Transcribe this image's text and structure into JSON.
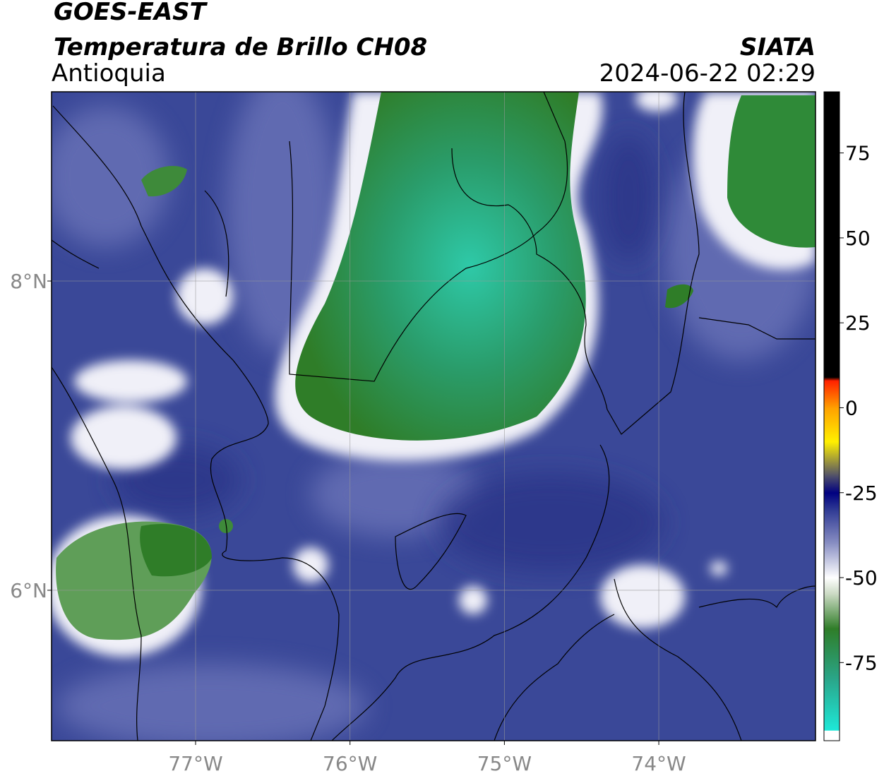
{
  "header": {
    "satellite": "GOES-EAST",
    "product": "Temperatura de Brillo CH08",
    "region": "Antioquia",
    "source": "SIATA",
    "datetime": "2024-06-22 02:29"
  },
  "map": {
    "xlim": [
      -77.933,
      -72.985
    ],
    "ylim": [
      5.027,
      9.224
    ],
    "xticks": [
      {
        "value": -77,
        "label": "77°W"
      },
      {
        "value": -76,
        "label": "76°W"
      },
      {
        "value": -75,
        "label": "75°W"
      },
      {
        "value": -74,
        "label": "74°W"
      }
    ],
    "yticks": [
      {
        "value": 8,
        "label": "8°N"
      },
      {
        "value": 6,
        "label": "6°N"
      }
    ],
    "grid": true
  },
  "colorbar": {
    "lim": [
      -98,
      93
    ],
    "ticks": [
      75,
      50,
      25,
      0,
      -25,
      -50,
      -75
    ],
    "stops": [
      {
        "value": -98,
        "color": "#ffffff"
      },
      {
        "value": -95,
        "color": "#ffffff"
      },
      {
        "value": -94.9,
        "color": "#1ee8d8"
      },
      {
        "value": -80,
        "color": "#2aa68a"
      },
      {
        "value": -65,
        "color": "#2f7d28"
      },
      {
        "value": -55,
        "color": "#c8d8c0"
      },
      {
        "value": -50,
        "color": "#ffffff"
      },
      {
        "value": -40,
        "color": "#8a90c4"
      },
      {
        "value": -30,
        "color": "#2f3a94"
      },
      {
        "value": -25,
        "color": "#000080"
      },
      {
        "value": -20,
        "color": "#50506a"
      },
      {
        "value": -10,
        "color": "#fff000"
      },
      {
        "value": 0,
        "color": "#ffa000"
      },
      {
        "value": 8,
        "color": "#ff2000"
      },
      {
        "value": 9,
        "color": "#000000"
      },
      {
        "value": 93,
        "color": "#000000"
      }
    ]
  }
}
